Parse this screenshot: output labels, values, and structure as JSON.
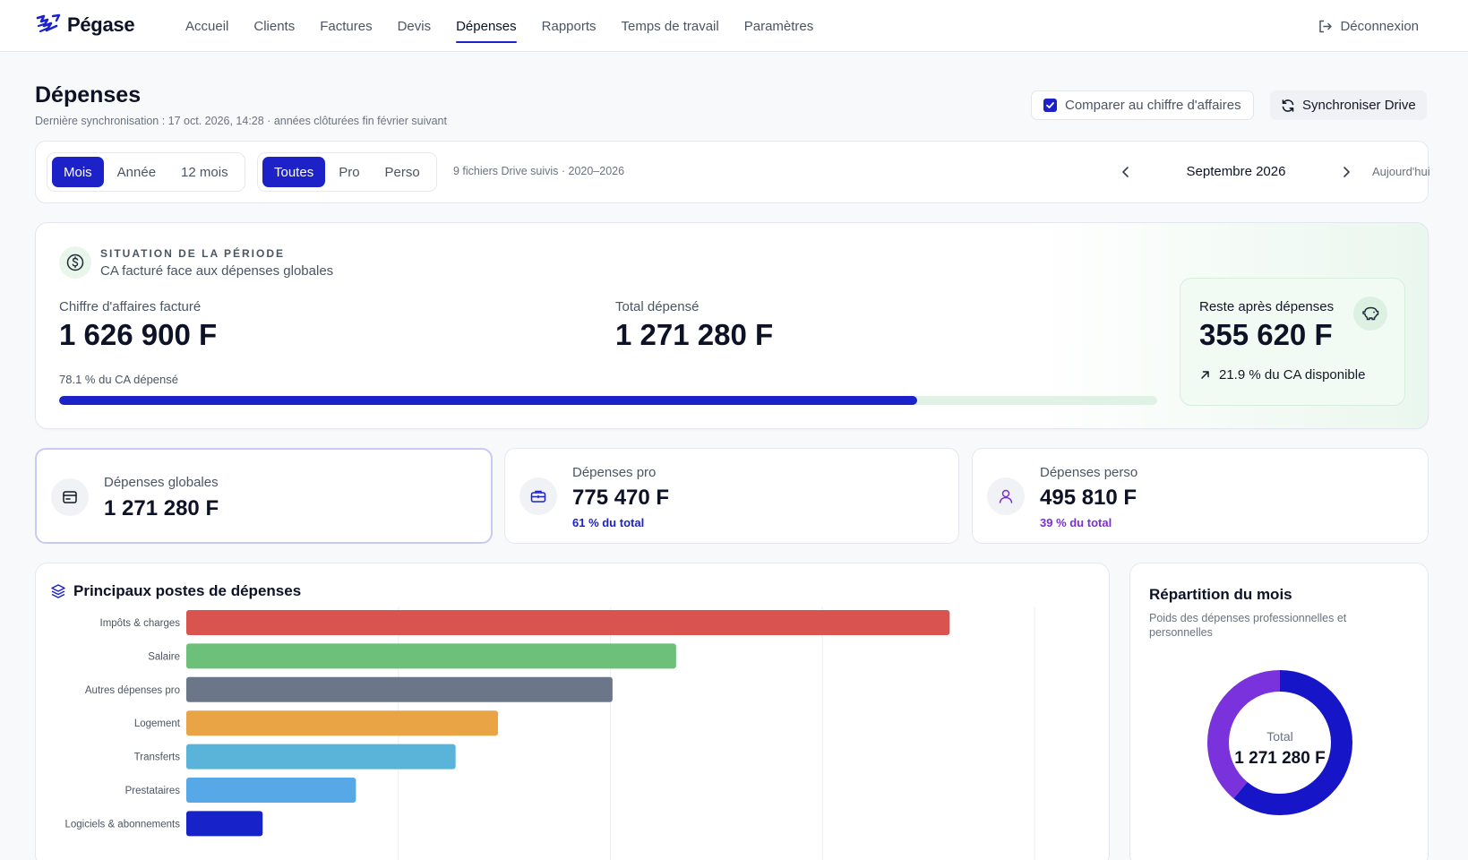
{
  "app": {
    "name": "Pégase"
  },
  "nav": {
    "items": [
      {
        "label": "Accueil",
        "active": false
      },
      {
        "label": "Clients",
        "active": false
      },
      {
        "label": "Factures",
        "active": false
      },
      {
        "label": "Devis",
        "active": false
      },
      {
        "label": "Dépenses",
        "active": true
      },
      {
        "label": "Rapports",
        "active": false
      },
      {
        "label": "Temps de travail",
        "active": false
      },
      {
        "label": "Paramètres",
        "active": false
      }
    ],
    "logout_label": "Déconnexion"
  },
  "header": {
    "title": "Dépenses",
    "subtitle": "Dernière synchronisation : 17 oct. 2026, 14:28 · années clôturées fin février suivant",
    "compare_label": "Comparer au chiffre d'affaires",
    "compare_checked": true,
    "sync_label": "Synchroniser Drive"
  },
  "filters": {
    "period_modes": [
      "Mois",
      "Année",
      "12 mois"
    ],
    "period_active": "Mois",
    "scopes": [
      "Toutes",
      "Pro",
      "Perso"
    ],
    "scope_active": "Toutes",
    "files_note": "9 fichiers Drive suivis · 2020–2026",
    "current_period": "Septembre 2026",
    "today_label": "Aujourd'hui"
  },
  "situation": {
    "kicker": "SITUATION DE LA PÉRIODE",
    "subtitle": "CA facturé face aux dépenses globales",
    "ca_label": "Chiffre d'affaires facturé",
    "ca_value": "1 626 900 F",
    "total_label": "Total dépensé",
    "total_value": "1 271 280 F",
    "spent_pct_label": "78.1 % du CA dépensé",
    "spent_fraction": 0.781,
    "rest_label": "Reste après dépenses",
    "rest_value": "355 620 F",
    "rest_note": "21.9 % du CA disponible"
  },
  "stats": [
    {
      "label": "Dépenses globales",
      "value": "1 271 280 F",
      "note": "",
      "icon": "wallet-icon"
    },
    {
      "label": "Dépenses pro",
      "value": "775 470 F",
      "note": "61 % du total",
      "icon": "briefcase-icon",
      "note_color": "#1c22c8"
    },
    {
      "label": "Dépenses perso",
      "value": "495 810 F",
      "note": "39 % du total",
      "icon": "user-icon",
      "note_color": "#7c2fd6"
    }
  ],
  "chart": {
    "title": "Principaux postes de dépenses"
  },
  "chart_data": {
    "type": "bar",
    "orientation": "horizontal",
    "categories": [
      "Impôts & charges",
      "Salaire",
      "Autres dépenses pro",
      "Logement",
      "Transferts",
      "Prestataires",
      "Logiciels & abonnements"
    ],
    "values": [
      360000,
      231000,
      201000,
      147000,
      127000,
      80000,
      36000
    ],
    "colors": [
      "#d9534f",
      "#6cc07a",
      "#6b7689",
      "#e9a445",
      "#5ab4d9",
      "#57a8e6",
      "#1822c9"
    ],
    "xlim": [
      0,
      400000
    ],
    "grid": true
  },
  "donut": {
    "title": "Répartition du mois",
    "subtitle": "Poids des dépenses professionnelles et personnelles",
    "center_label": "Total",
    "center_value": "1 271 280 F",
    "segments": [
      {
        "name": "Pro",
        "value": 775470,
        "color": "#1616c8"
      },
      {
        "name": "Perso",
        "value": 495810,
        "color": "#7a32dc"
      }
    ]
  }
}
